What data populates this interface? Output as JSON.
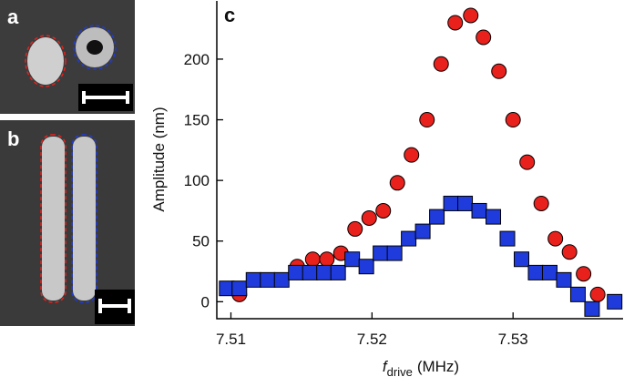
{
  "panels": {
    "a": "a",
    "b": "b"
  },
  "chart_data": {
    "type": "scatter",
    "panel_label": "c",
    "y_label": "Amplitude (nm)",
    "x_label": {
      "symbol": "f",
      "subscript": "drive",
      "unit": "(MHz)"
    },
    "xlim": [
      7.509,
      7.5378
    ],
    "ylim": [
      -14,
      248
    ],
    "xticks": [
      7.51,
      7.52,
      7.53
    ],
    "yticks": [
      0,
      50,
      100,
      150,
      200
    ],
    "series": [
      {
        "color": "#e8211d",
        "marker": "circle",
        "x": [
          7.5106,
          7.5147,
          7.5158,
          7.5168,
          7.5178,
          7.5188,
          7.5198,
          7.5208,
          7.5218,
          7.5228,
          7.5239,
          7.5249,
          7.5259,
          7.527,
          7.5279,
          7.529,
          7.53,
          7.531,
          7.532,
          7.533,
          7.534,
          7.535,
          7.536
        ],
        "values": [
          6,
          29,
          35,
          35,
          40,
          60,
          69,
          75,
          98,
          121,
          150,
          196,
          230,
          236,
          218,
          190,
          150,
          115,
          81,
          52,
          41,
          23,
          6
        ]
      },
      {
        "color": "#1f3bdb",
        "marker": "square",
        "x": [
          7.5097,
          7.5106,
          7.5116,
          7.5126,
          7.5136,
          7.5146,
          7.5156,
          7.5166,
          7.5176,
          7.5186,
          7.5196,
          7.5206,
          7.5216,
          7.5226,
          7.5236,
          7.5246,
          7.5256,
          7.5266,
          7.5276,
          7.5286,
          7.5296,
          7.5306,
          7.5316,
          7.5326,
          7.5336,
          7.5346,
          7.5356,
          7.5372
        ],
        "values": [
          11,
          11,
          18,
          18,
          18,
          24,
          24,
          24,
          24,
          35,
          29,
          40,
          40,
          52,
          58,
          70,
          81,
          81,
          75,
          70,
          52,
          35,
          24,
          24,
          18,
          6,
          -6,
          0
        ]
      }
    ]
  }
}
